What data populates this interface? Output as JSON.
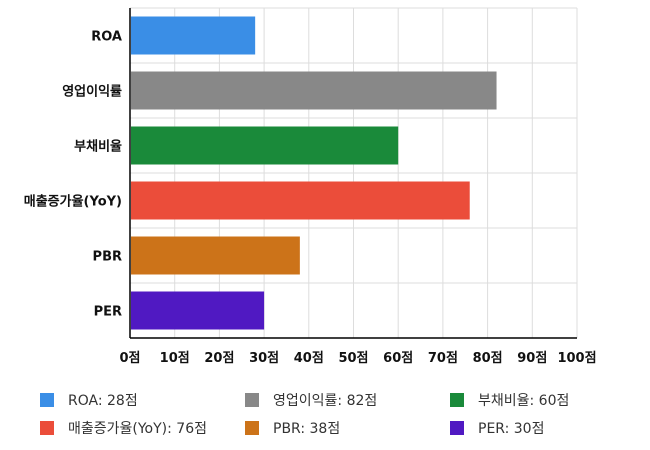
{
  "chart_data": {
    "type": "bar",
    "orientation": "horizontal",
    "categories": [
      "ROA",
      "영업이익률",
      "부채비율",
      "매출증가율(YoY)",
      "PBR",
      "PER"
    ],
    "values": [
      28,
      82,
      60,
      76,
      38,
      30
    ],
    "colors": [
      "#3a8ee6",
      "#888888",
      "#1a8a3a",
      "#eb4d3a",
      "#cc7319",
      "#5019c2"
    ],
    "xlim": [
      0,
      100
    ],
    "xticks": [
      0,
      10,
      20,
      30,
      40,
      50,
      60,
      70,
      80,
      90,
      100
    ],
    "tick_labels": [
      "0점",
      "10점",
      "20점",
      "30점",
      "40점",
      "50점",
      "60점",
      "70점",
      "80점",
      "90점",
      "100점"
    ],
    "grid": true,
    "legend_position": "bottom",
    "legend": [
      {
        "label": "ROA: 28점",
        "color": "#3a8ee6"
      },
      {
        "label": "영업이익률: 82점",
        "color": "#888888"
      },
      {
        "label": "부채비율: 60점",
        "color": "#1a8a3a"
      },
      {
        "label": "매출증가율(YoY): 76점",
        "color": "#eb4d3a"
      },
      {
        "label": "PBR: 38점",
        "color": "#cc7319"
      },
      {
        "label": "PER: 30점",
        "color": "#5019c2"
      }
    ]
  }
}
